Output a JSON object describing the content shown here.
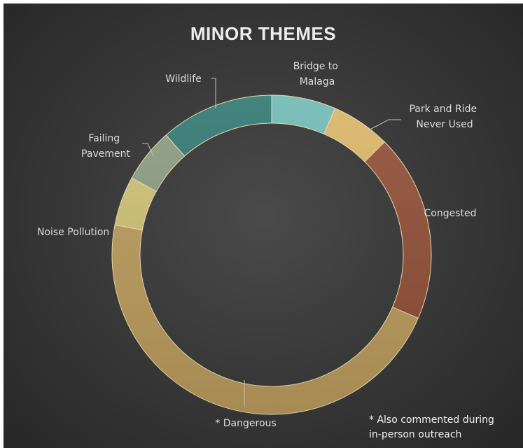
{
  "chart_data": {
    "type": "pie",
    "style": "donut",
    "title": "MINOR THEMES",
    "unit": "percent",
    "slices": [
      {
        "label": "Bridge to Malaga",
        "value": 6.5,
        "color": "#6fb9b3"
      },
      {
        "label": "Park and Ride Never Used",
        "value": 6.0,
        "color": "#d9b566"
      },
      {
        "label": "Congested",
        "value": 19.0,
        "color": "#8f4e36"
      },
      {
        "label": "* Dangerous",
        "value": 46.5,
        "color": "#b99a5c"
      },
      {
        "label": "Noise Pollution",
        "value": 5.0,
        "color": "#cdbf75"
      },
      {
        "label": "Failing Pavement",
        "value": 5.5,
        "color": "#8a9a80"
      },
      {
        "label": "Wildlife",
        "value": 11.5,
        "color": "#2f7670"
      }
    ]
  },
  "labels": {
    "bridge": [
      "Bridge to",
      "Malaga"
    ],
    "park": [
      "Park and Ride",
      "Never Used"
    ],
    "congested": [
      "Congested"
    ],
    "dangerous": [
      "* Dangerous"
    ],
    "noise": [
      "Noise Pollution"
    ],
    "failing": [
      "Failing",
      "Pavement"
    ],
    "wildlife": [
      "Wildlife"
    ]
  },
  "footnote": [
    "* Also commented during",
    "in-person outreach"
  ]
}
